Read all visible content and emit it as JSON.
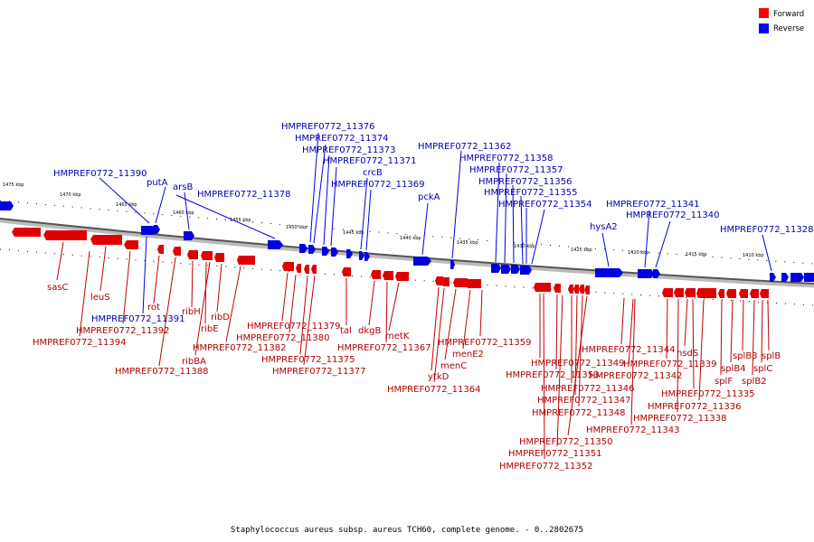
{
  "colors": {
    "forward": "#e00000",
    "reverse": "#0000e0",
    "forward_label": "#b00000",
    "reverse_label": "#0000b0"
  },
  "legend": [
    {
      "label": "Forward",
      "color": "#ff0000"
    },
    {
      "label": "Reverse",
      "color": "#0000ff"
    }
  ],
  "footer": "Staphylococcus aureus subsp. aureus TCH60, complete genome. - 0..2802675",
  "kbp_ticks": [
    "1475 kbp",
    "1470 kbp",
    "1465 kbp",
    "1460 kbp",
    "1455 kbp",
    "1450 kbp",
    "1445 kbp",
    "1440 kbp",
    "1435 kbp",
    "1430 kbp",
    "1425 kbp",
    "1420 kbp",
    "1415 kbp",
    "1410 kbp"
  ],
  "reverse_labels": [
    "HMPREF0772_11376",
    "HMPREF0772_11374",
    "HMPREF0772_11373",
    "HMPREF0772_11371",
    "crcB",
    "HMPREF0772_11369",
    "HMPREF0772_11362",
    "HMPREF0772_11358",
    "HMPREF0772_11357",
    "HMPREF0772_11356",
    "HMPREF0772_11355",
    "HMPREF0772_11354",
    "HMPREF0772_11390",
    "putA",
    "arsB",
    "HMPREF0772_11378",
    "pckA",
    "hysA2",
    "HMPREF0772_11341",
    "HMPREF0772_11340",
    "HMPREF0772_11328",
    "HMPREF0772_11391"
  ],
  "forward_labels": [
    "sasC",
    "leuS",
    "rot",
    "HMPREF0772_11392",
    "HMPREF0772_11394",
    "ribH",
    "ribD",
    "ribE",
    "ribBA",
    "HMPREF0772_11382",
    "HMPREF0772_11388",
    "HMPREF0772_11379",
    "HMPREF0772_11380",
    "HMPREF0772_11375",
    "HMPREF0772_11377",
    "tal",
    "dkgB",
    "metK",
    "HMPREF0772_11367",
    "HMPREF0772_11359",
    "menE2",
    "menC",
    "ytkD",
    "HMPREF0772_11364",
    "HMPREF0772_11349",
    "HMPREF0772_11353",
    "HMPREF0772_11346",
    "HMPREF0772_11347",
    "HMPREF0772_11348",
    "HMPREF0772_11350",
    "HMPREF0772_11351",
    "HMPREF0772_11352",
    "HMPREF0772_11344",
    "HMPREF0772_11342",
    "HMPREF0772_11343",
    "HMPREF0772_11339",
    "hsdS",
    "HMPREF0772_11335",
    "HMPREF0772_11336",
    "HMPREF0772_11338",
    "splF",
    "splB4",
    "splB3",
    "splC",
    "splB2",
    "splB"
  ]
}
